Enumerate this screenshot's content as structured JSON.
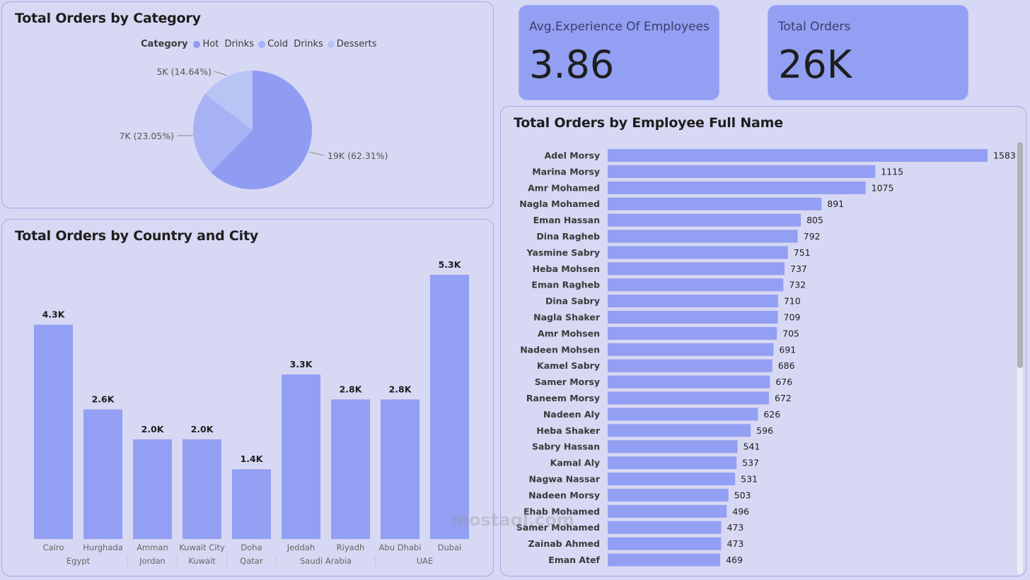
{
  "category_panel": {
    "title": "Total Orders by Category",
    "legend_title": "Category",
    "legend": [
      {
        "label": "Hot  Drinks",
        "color": "#8f9cf2"
      },
      {
        "label": "Cold  Drinks",
        "color": "#a7b2f4"
      },
      {
        "label": "Desserts",
        "color": "#b9c4f4"
      }
    ]
  },
  "country_panel": {
    "title": "Total Orders by Country and City"
  },
  "employee_panel": {
    "title": "Total Orders by Employee Full Name"
  },
  "kpis": {
    "experience_label": "Avg.Experience Of Employees",
    "experience_value": "3.86",
    "orders_label": "Total Orders",
    "orders_value": "26K"
  },
  "watermark": "mostaql.com",
  "chart_data": [
    {
      "type": "pie",
      "title": "Total Orders by Category",
      "legend_title": "Category",
      "slices": [
        {
          "label": "Hot  Drinks",
          "value": 19,
          "text": "19K (62.31%)",
          "percent": 62.31,
          "color": "#8f9cf2"
        },
        {
          "label": "Cold  Drinks",
          "value": 7,
          "text": "7K (23.05%)",
          "percent": 23.05,
          "color": "#a7b2f4"
        },
        {
          "label": "Desserts",
          "value": 5,
          "text": "5K (14.64%)",
          "percent": 14.64,
          "color": "#b9c4f4"
        }
      ]
    },
    {
      "type": "bar",
      "title": "Total Orders by Country and City",
      "categories": [
        "Cairo",
        "Hurghada",
        "Amman",
        "Kuwait City",
        "Doha",
        "Jeddah",
        "Riyadh",
        "Abu Dhabi",
        "Dubai"
      ],
      "groups": [
        {
          "label": "Egypt",
          "span": 2
        },
        {
          "label": "Jordan",
          "span": 1
        },
        {
          "label": "Kuwait",
          "span": 1
        },
        {
          "label": "Qatar",
          "span": 1
        },
        {
          "label": "Saudi Arabia",
          "span": 2
        },
        {
          "label": "UAE",
          "span": 2
        }
      ],
      "values": [
        4.3,
        2.6,
        2.0,
        2.0,
        1.4,
        3.3,
        2.8,
        2.8,
        5.3
      ],
      "labels": [
        "4.3K",
        "2.6K",
        "2.0K",
        "2.0K",
        "1.4K",
        "3.3K",
        "2.8K",
        "2.8K",
        "5.3K"
      ],
      "ylim": [
        0,
        5.3
      ],
      "color": "#939ff2"
    },
    {
      "type": "bar",
      "orientation": "horizontal",
      "title": "Total Orders by Employee Full Name",
      "categories": [
        "Adel Morsy",
        "Marina Morsy",
        "Amr Mohamed",
        "Nagla Mohamed",
        "Eman Hassan",
        "Dina Ragheb",
        "Yasmine Sabry",
        "Heba Mohsen",
        "Eman Ragheb",
        "Dina Sabry",
        "Nagla Shaker",
        "Amr Mohsen",
        "Nadeen Mohsen",
        "Kamel Sabry",
        "Samer Morsy",
        "Raneem Morsy",
        "Nadeen Aly",
        "Heba Shaker",
        "Sabry Hassan",
        "Kamal Aly",
        "Nagwa Nassar",
        "Nadeen Morsy",
        "Ehab Mohamed",
        "Samer Mohamed",
        "Zainab Ahmed",
        "Eman Atef"
      ],
      "values": [
        1583,
        1115,
        1075,
        891,
        805,
        792,
        751,
        737,
        732,
        710,
        709,
        705,
        691,
        686,
        676,
        672,
        626,
        596,
        541,
        537,
        531,
        503,
        496,
        473,
        473,
        469
      ],
      "color": "#939ff2"
    }
  ]
}
